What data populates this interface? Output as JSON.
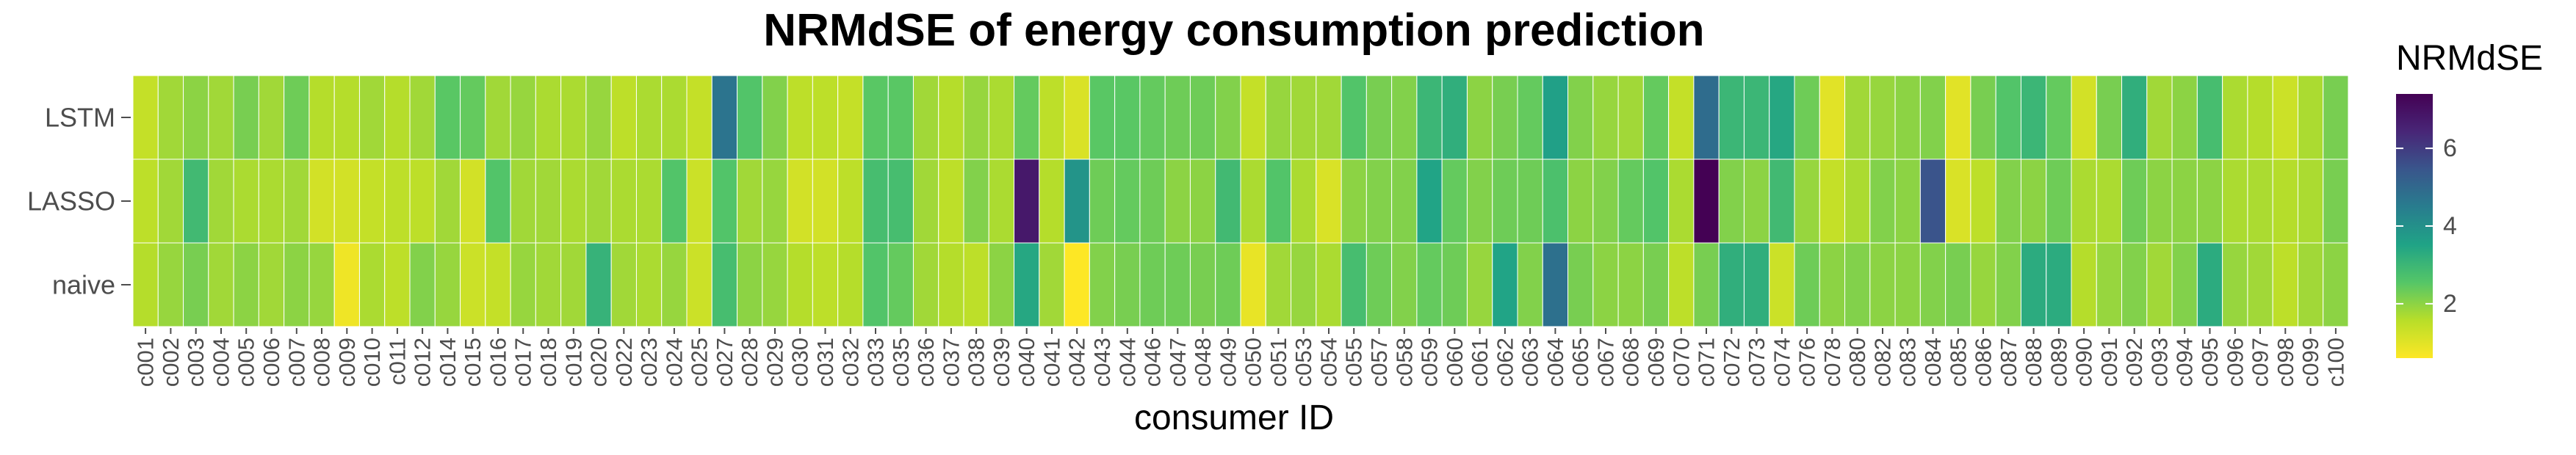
{
  "chart_data": {
    "type": "heatmap",
    "title": "NRMdSE of energy consumption prediction",
    "xlabel": "consumer ID",
    "ylabel": "",
    "rows": [
      "LSTM",
      "LASSO",
      "naive"
    ],
    "columns": [
      "c001",
      "c002",
      "c003",
      "c004",
      "c005",
      "c006",
      "c007",
      "c008",
      "c009",
      "c010",
      "c011",
      "c012",
      "c014",
      "c015",
      "c016",
      "c017",
      "c018",
      "c019",
      "c020",
      "c022",
      "c023",
      "c024",
      "c025",
      "c027",
      "c028",
      "c029",
      "c030",
      "c031",
      "c032",
      "c033",
      "c035",
      "c036",
      "c037",
      "c038",
      "c039",
      "c040",
      "c041",
      "c042",
      "c043",
      "c044",
      "c046",
      "c047",
      "c048",
      "c049",
      "c050",
      "c051",
      "c053",
      "c054",
      "c055",
      "c057",
      "c058",
      "c059",
      "c060",
      "c061",
      "c062",
      "c063",
      "c064",
      "c065",
      "c067",
      "c068",
      "c069",
      "c070",
      "c071",
      "c072",
      "c073",
      "c074",
      "c076",
      "c078",
      "c080",
      "c082",
      "c083",
      "c084",
      "c085",
      "c086",
      "c087",
      "c088",
      "c089",
      "c090",
      "c091",
      "c092",
      "c093",
      "c094",
      "c095",
      "c096",
      "c097",
      "c098",
      "c099",
      "c100"
    ],
    "values": [
      [
        1.4,
        1.8,
        2.0,
        1.8,
        2.2,
        1.8,
        2.3,
        1.6,
        1.6,
        1.8,
        1.6,
        1.8,
        2.5,
        2.4,
        1.8,
        1.9,
        1.7,
        1.7,
        1.9,
        1.5,
        1.7,
        1.7,
        1.4,
        4.7,
        2.6,
        2.1,
        1.5,
        1.5,
        1.4,
        2.5,
        2.5,
        1.8,
        1.6,
        1.9,
        1.7,
        2.4,
        1.5,
        1.1,
        2.5,
        2.5,
        2.4,
        2.3,
        2.3,
        2.1,
        1.4,
        1.9,
        1.8,
        1.8,
        2.6,
        2.2,
        2.1,
        3.0,
        3.2,
        2.0,
        2.2,
        2.4,
        3.6,
        2.1,
        1.9,
        1.8,
        2.4,
        1.4,
        4.9,
        3.0,
        3.0,
        3.4,
        2.3,
        1.0,
        1.8,
        1.9,
        2.0,
        2.1,
        1.0,
        2.2,
        2.6,
        3.0,
        2.4,
        1.2,
        2.2,
        3.2,
        1.8,
        2.0,
        2.8,
        1.7,
        1.6,
        1.3,
        1.7,
        2.2
      ],
      [
        1.5,
        1.8,
        2.9,
        1.8,
        1.7,
        1.7,
        1.8,
        1.2,
        1.2,
        1.4,
        1.5,
        1.5,
        1.8,
        1.2,
        2.6,
        1.8,
        1.8,
        1.7,
        1.8,
        1.7,
        1.7,
        2.6,
        1.3,
        2.6,
        1.8,
        1.9,
        1.2,
        1.2,
        1.5,
        2.8,
        2.8,
        1.8,
        1.5,
        2.1,
        1.7,
        6.8,
        1.6,
        3.9,
        2.3,
        2.4,
        2.3,
        2.0,
        2.0,
        2.9,
        1.7,
        2.6,
        1.7,
        1.1,
        2.0,
        2.1,
        2.1,
        3.5,
        2.4,
        2.1,
        2.3,
        2.3,
        2.7,
        2.0,
        2.1,
        2.4,
        2.6,
        1.7,
        7.4,
        2.1,
        2.0,
        2.9,
        1.9,
        1.4,
        1.7,
        2.1,
        2.0,
        5.5,
        1.1,
        1.5,
        2.1,
        2.0,
        2.3,
        1.7,
        1.7,
        2.3,
        2.0,
        2.0,
        2.0,
        1.7,
        1.7,
        1.6,
        1.7,
        2.2
      ],
      [
        1.6,
        1.9,
        2.2,
        1.8,
        2.0,
        1.8,
        2.0,
        1.9,
        0.8,
        1.7,
        1.5,
        2.1,
        1.9,
        1.3,
        1.4,
        1.9,
        1.8,
        1.8,
        3.1,
        1.8,
        1.7,
        1.9,
        1.3,
        2.8,
        2.0,
        1.9,
        1.6,
        1.5,
        1.6,
        2.6,
        2.4,
        1.8,
        1.6,
        1.5,
        2.0,
        3.4,
        1.8,
        0.6,
        2.1,
        2.2,
        2.3,
        2.3,
        2.2,
        2.3,
        0.9,
        1.8,
        1.9,
        1.7,
        2.8,
        2.3,
        2.1,
        2.4,
        2.3,
        1.9,
        3.5,
        2.1,
        4.8,
        2.2,
        2.0,
        2.0,
        2.2,
        1.5,
        2.2,
        3.2,
        3.2,
        1.3,
        2.3,
        2.0,
        2.1,
        2.0,
        2.0,
        2.1,
        2.2,
        1.9,
        2.1,
        3.3,
        3.3,
        1.6,
        1.9,
        2.1,
        1.8,
        2.1,
        3.3,
        1.9,
        1.8,
        1.5,
        1.8,
        2.0
      ]
    ],
    "legend": {
      "title": "NRMdSE",
      "ticks": [
        2,
        4,
        6
      ],
      "range": [
        0.6,
        7.4
      ],
      "placement": "right"
    },
    "colors": {
      "scale": [
        "#FDE725",
        "#B8DE29",
        "#55C667",
        "#20A386",
        "#287D8E",
        "#39568C",
        "#482677",
        "#440154"
      ],
      "grid": "#FFFFFF"
    }
  }
}
